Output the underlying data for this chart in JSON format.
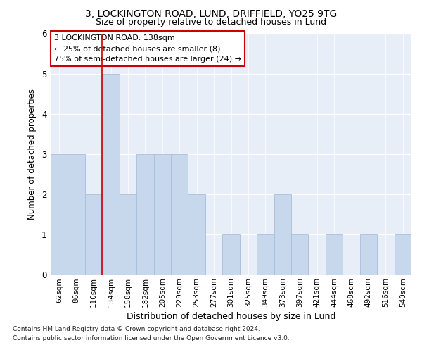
{
  "title1": "3, LOCKINGTON ROAD, LUND, DRIFFIELD, YO25 9TG",
  "title2": "Size of property relative to detached houses in Lund",
  "xlabel": "Distribution of detached houses by size in Lund",
  "ylabel": "Number of detached properties",
  "categories": [
    "62sqm",
    "86sqm",
    "110sqm",
    "134sqm",
    "158sqm",
    "182sqm",
    "205sqm",
    "229sqm",
    "253sqm",
    "277sqm",
    "301sqm",
    "325sqm",
    "349sqm",
    "373sqm",
    "397sqm",
    "421sqm",
    "444sqm",
    "468sqm",
    "492sqm",
    "516sqm",
    "540sqm"
  ],
  "values": [
    3,
    3,
    2,
    5,
    2,
    3,
    3,
    3,
    2,
    0,
    1,
    0,
    1,
    2,
    1,
    0,
    1,
    0,
    1,
    0,
    1
  ],
  "bar_color": "#c8d8ec",
  "bar_edge_color": "#a8bedc",
  "highlight_index": 3,
  "highlight_line_color": "#cc0000",
  "ylim": [
    0,
    6
  ],
  "yticks": [
    0,
    1,
    2,
    3,
    4,
    5,
    6
  ],
  "annotation_title": "3 LOCKINGTON ROAD: 138sqm",
  "annotation_line1": "← 25% of detached houses are smaller (8)",
  "annotation_line2": "75% of semi-detached houses are larger (24) →",
  "annotation_box_color": "#ffffff",
  "annotation_box_edge": "#cc0000",
  "footer1": "Contains HM Land Registry data © Crown copyright and database right 2024.",
  "footer2": "Contains public sector information licensed under the Open Government Licence v3.0.",
  "bg_color": "#ffffff",
  "plot_bg_color": "#e8eef8",
  "grid_color": "#ffffff"
}
